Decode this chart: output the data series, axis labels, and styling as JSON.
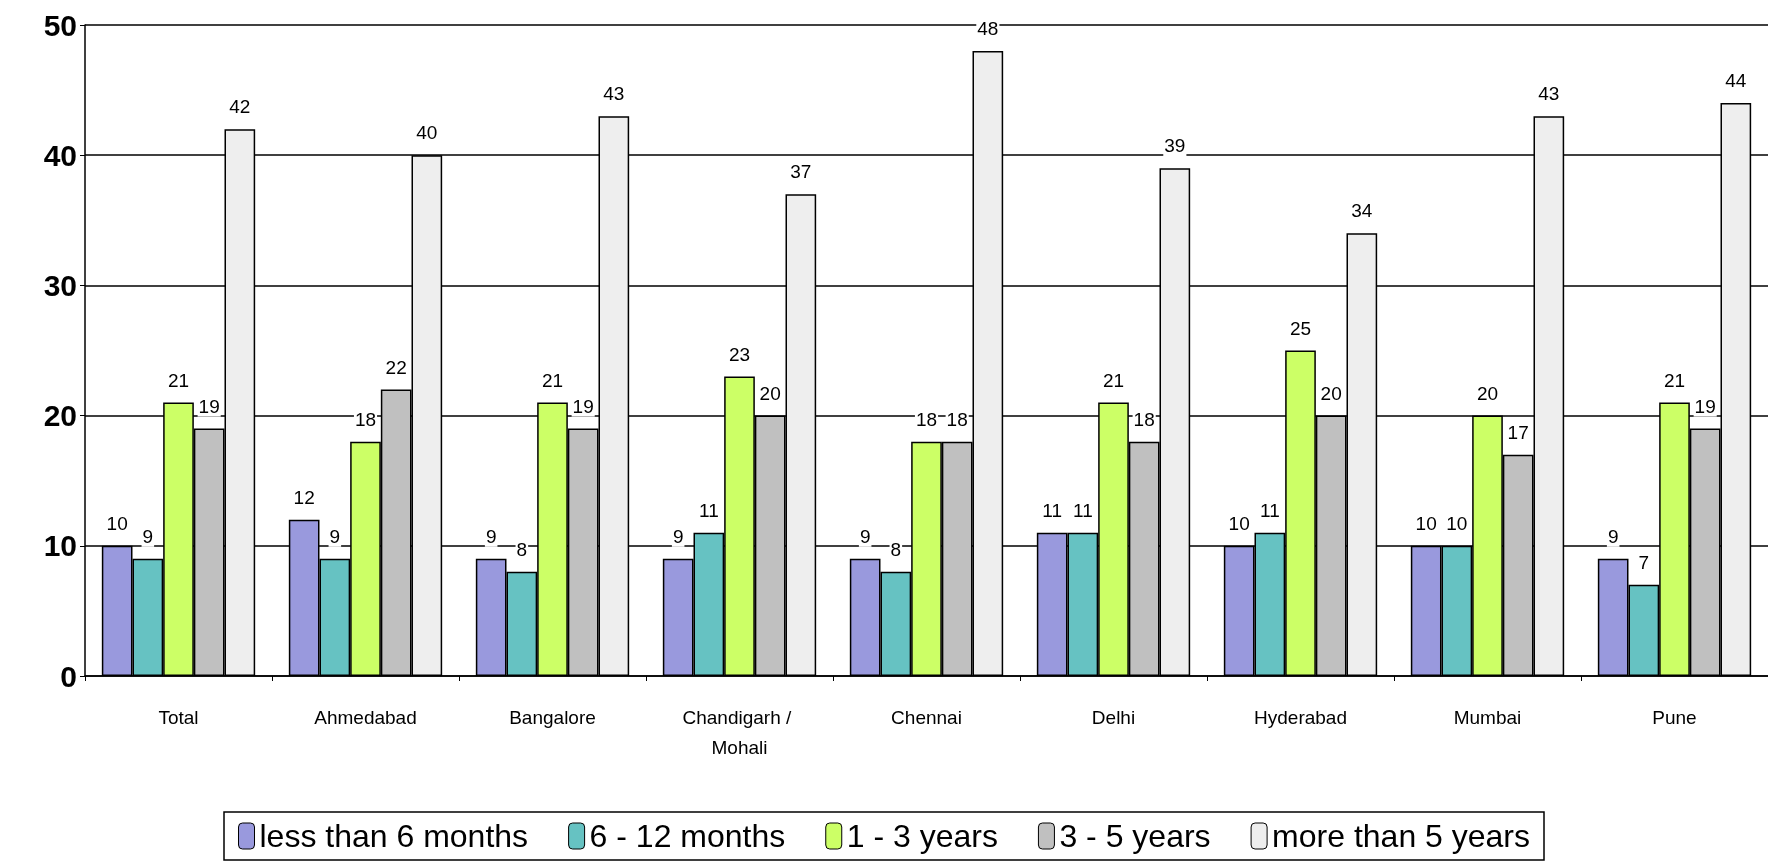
{
  "chart_data": {
    "type": "bar",
    "categories": [
      "Total",
      "Ahmedabad",
      "Bangalore",
      "Chandigarh / Mohali",
      "Chennai",
      "Delhi",
      "Hyderabad",
      "Mumbai",
      "Pune"
    ],
    "series": [
      {
        "name": "less than 6 months",
        "color": "#9999dd",
        "values": [
          10,
          12,
          9,
          9,
          9,
          11,
          10,
          10,
          9
        ]
      },
      {
        "name": "6 - 12 months",
        "color": "#66c2c2",
        "values": [
          9,
          9,
          8,
          11,
          8,
          11,
          11,
          10,
          7
        ]
      },
      {
        "name": "1 - 3 years",
        "color": "#ccff66",
        "values": [
          21,
          18,
          21,
          23,
          18,
          21,
          25,
          20,
          21
        ]
      },
      {
        "name": "3 - 5 years",
        "color": "#c0c0c0",
        "values": [
          19,
          22,
          19,
          20,
          18,
          18,
          20,
          17,
          19
        ]
      },
      {
        "name": "more than 5 years",
        "color": "#eeeeee",
        "values": [
          42,
          40,
          43,
          37,
          48,
          39,
          34,
          43,
          44
        ]
      }
    ],
    "ylim": [
      0,
      50
    ],
    "yticks": [
      0,
      10,
      20,
      30,
      40,
      50
    ],
    "grid": "y",
    "legend": "bottom",
    "data_labels": true
  }
}
